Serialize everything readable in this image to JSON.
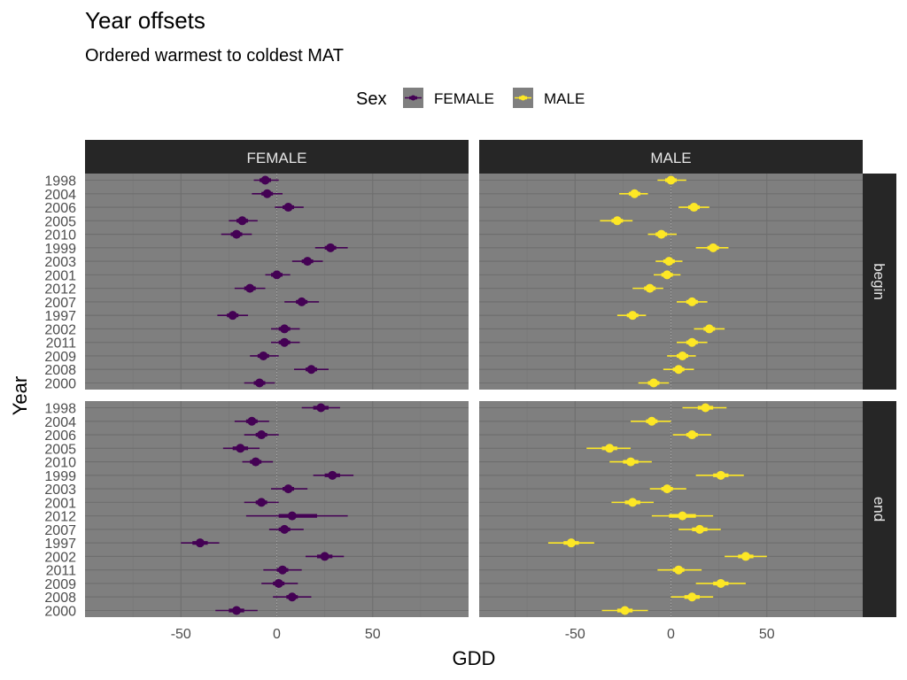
{
  "chart_data": {
    "type": "scatter",
    "title": "Year offsets",
    "subtitle": "Ordered warmest to coldest MAT",
    "xlabel": "GDD",
    "ylabel": "Year",
    "xlim": [
      -100,
      100
    ],
    "x_ticks": [
      -50,
      0,
      50
    ],
    "grid": true,
    "legend_title": "Sex",
    "legend_position": "top",
    "legend": [
      {
        "name": "FEMALE",
        "color": "#440154"
      },
      {
        "name": "MALE",
        "color": "#FDE725"
      }
    ],
    "reference_line": 0,
    "categories": [
      "1998",
      "2004",
      "2006",
      "2005",
      "2010",
      "1999",
      "2003",
      "2001",
      "2012",
      "2007",
      "1997",
      "2002",
      "2011",
      "2009",
      "2008",
      "2000"
    ],
    "facet_cols": [
      "FEMALE",
      "MALE"
    ],
    "facet_rows": [
      "begin",
      "end"
    ],
    "panels": [
      {
        "row": "begin",
        "col": "FEMALE",
        "values": [
          -6,
          -5,
          6,
          -18,
          -21,
          28,
          16,
          0,
          -14,
          13,
          -23,
          4,
          4,
          -7,
          18,
          -9
        ],
        "inner_lo": [
          -9,
          -8,
          3,
          -21,
          -24,
          25,
          13,
          -3,
          -17,
          10,
          -26,
          1,
          1,
          -10,
          15,
          -12
        ],
        "inner_hi": [
          -3,
          -2,
          9,
          -15,
          -18,
          31,
          19,
          3,
          -11,
          16,
          -20,
          7,
          7,
          -4,
          21,
          -6
        ],
        "outer_lo": [
          -12,
          -13,
          -1,
          -25,
          -29,
          20,
          8,
          -6,
          -22,
          4,
          -31,
          -3,
          -3,
          -14,
          9,
          -17
        ],
        "outer_hi": [
          1,
          3,
          14,
          -10,
          -13,
          37,
          24,
          7,
          -6,
          22,
          -15,
          12,
          12,
          1,
          27,
          -1
        ]
      },
      {
        "row": "begin",
        "col": "MALE",
        "values": [
          0,
          -19,
          12,
          -28,
          -5,
          22,
          -1,
          -2,
          -11,
          11,
          -20,
          20,
          11,
          6,
          4,
          -9
        ],
        "inner_lo": [
          -3,
          -22,
          9,
          -31,
          -8,
          19,
          -4,
          -5,
          -14,
          8,
          -23,
          17,
          8,
          3,
          1,
          -12
        ],
        "inner_hi": [
          3,
          -16,
          15,
          -25,
          -2,
          25,
          2,
          1,
          -8,
          14,
          -17,
          23,
          14,
          9,
          7,
          -6
        ],
        "outer_lo": [
          -7,
          -27,
          4,
          -37,
          -12,
          13,
          -8,
          -9,
          -20,
          3,
          -28,
          12,
          3,
          -2,
          -4,
          -17
        ],
        "outer_hi": [
          8,
          -12,
          20,
          -20,
          3,
          30,
          6,
          5,
          -4,
          19,
          -13,
          28,
          19,
          13,
          12,
          -1
        ]
      },
      {
        "row": "end",
        "col": "FEMALE",
        "values": [
          23,
          -13,
          -8,
          -19,
          -11,
          29,
          6,
          -8,
          8,
          4,
          -40,
          25,
          3,
          1,
          8,
          -21
        ],
        "inner_lo": [
          19,
          -16,
          -11,
          -23,
          -14,
          25,
          3,
          -11,
          1,
          1,
          -44,
          21,
          0,
          -2,
          5,
          -25
        ],
        "inner_hi": [
          27,
          -10,
          -5,
          -15,
          -8,
          33,
          9,
          -5,
          21,
          7,
          -36,
          29,
          6,
          4,
          11,
          -17
        ],
        "outer_lo": [
          13,
          -22,
          -17,
          -28,
          -18,
          19,
          -3,
          -17,
          -16,
          -4,
          -50,
          15,
          -7,
          -8,
          -2,
          -32
        ],
        "outer_hi": [
          33,
          -4,
          1,
          -9,
          -2,
          40,
          16,
          1,
          37,
          14,
          -30,
          35,
          13,
          11,
          18,
          -10
        ]
      },
      {
        "row": "end",
        "col": "MALE",
        "values": [
          18,
          -10,
          11,
          -32,
          -21,
          26,
          -2,
          -20,
          6,
          15,
          -52,
          39,
          4,
          26,
          11,
          -24
        ],
        "inner_lo": [
          14,
          -13,
          8,
          -36,
          -25,
          22,
          -5,
          -24,
          -1,
          11,
          -56,
          35,
          1,
          22,
          7,
          -28
        ],
        "inner_hi": [
          22,
          -7,
          14,
          -28,
          -17,
          30,
          1,
          -16,
          13,
          19,
          -48,
          43,
          7,
          30,
          15,
          -20
        ],
        "outer_lo": [
          6,
          -21,
          1,
          -44,
          -32,
          13,
          -11,
          -31,
          -10,
          4,
          -64,
          28,
          -7,
          13,
          0,
          -36
        ],
        "outer_hi": [
          29,
          0,
          21,
          -21,
          -10,
          38,
          8,
          -9,
          22,
          26,
          -40,
          50,
          16,
          39,
          22,
          -12
        ]
      }
    ]
  }
}
